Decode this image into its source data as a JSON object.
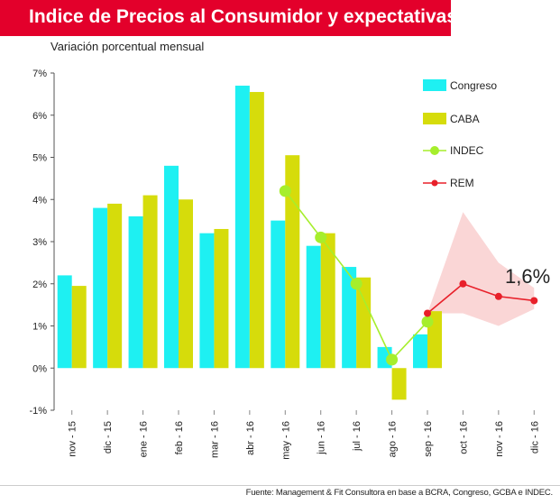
{
  "title": "Indice de Precios al Consumidor y expectativas",
  "subtitle": "Variación porcentual mensual",
  "footer_prefix": "Fuente:",
  "footer_source": "Management & Fit Consultora en base a BCRA, Congreso, GCBA e INDEC.",
  "colors": {
    "congreso": "#1ef0f2",
    "caba": "#d6dc0b",
    "indec": "#a6ee2c",
    "rem": "#e8202a",
    "rem_band": "#f9cfcf",
    "header": "#e3002b"
  },
  "chart_data": {
    "type": "bar",
    "title": "Indice de Precios al Consumidor y expectativas",
    "ylabel": "Variación porcentual mensual",
    "ylim": [
      -1,
      7
    ],
    "yticks": [
      "-1%",
      "0%",
      "1%",
      "2%",
      "3%",
      "4%",
      "5%",
      "6%",
      "7%"
    ],
    "grid": false,
    "legend_position": "top-right",
    "categories": [
      "nov - 15",
      "dic - 15",
      "ene - 16",
      "feb - 16",
      "mar - 16",
      "abr - 16",
      "may - 16",
      "jun - 16",
      "jul - 16",
      "ago - 16",
      "sep - 16",
      "oct - 16",
      "nov - 16",
      "dic - 16"
    ],
    "series": [
      {
        "name": "Congreso",
        "kind": "bar",
        "values": [
          2.2,
          3.8,
          3.6,
          4.8,
          3.2,
          6.7,
          3.5,
          2.9,
          2.4,
          0.5,
          0.8,
          null,
          null,
          null
        ]
      },
      {
        "name": "CABA",
        "kind": "bar",
        "values": [
          1.95,
          3.9,
          4.1,
          4.0,
          3.3,
          6.55,
          5.05,
          3.2,
          2.15,
          -0.75,
          1.35,
          null,
          null,
          null
        ]
      },
      {
        "name": "INDEC",
        "kind": "line",
        "values": [
          null,
          null,
          null,
          null,
          null,
          null,
          4.2,
          3.1,
          2.0,
          0.2,
          1.1,
          null,
          null,
          null
        ]
      },
      {
        "name": "REM",
        "kind": "line",
        "values": [
          null,
          null,
          null,
          null,
          null,
          null,
          null,
          null,
          null,
          null,
          1.3,
          2.0,
          1.7,
          1.6
        ]
      }
    ],
    "rem_band": {
      "upper": [
        null,
        null,
        null,
        null,
        null,
        null,
        null,
        null,
        null,
        null,
        1.3,
        3.7,
        2.5,
        1.9
      ],
      "lower": [
        null,
        null,
        null,
        null,
        null,
        null,
        null,
        null,
        null,
        null,
        1.3,
        1.3,
        1.0,
        1.4
      ]
    },
    "annotation": "1,6%"
  }
}
